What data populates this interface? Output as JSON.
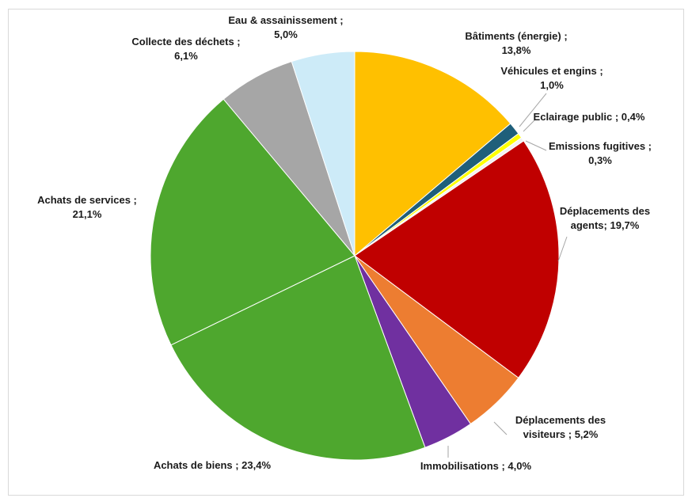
{
  "chart_data": {
    "type": "pie",
    "title": "",
    "slices": [
      {
        "name": "Bâtiments (énergie)",
        "value": 13.8,
        "label_lines": [
          "Bâtiments (énergie) ;",
          "13,8%"
        ],
        "color": "#FFC000"
      },
      {
        "name": "Véhicules et engins",
        "value": 1.0,
        "label_lines": [
          "Véhicules et engins ;",
          "1,0%"
        ],
        "color": "#1F5F7A"
      },
      {
        "name": "Eclairage public",
        "value": 0.4,
        "label_lines": [
          "Eclairage public ; 0,4%"
        ],
        "color": "#FFFF00"
      },
      {
        "name": "Emissions fugitives",
        "value": 0.3,
        "label_lines": [
          "Emissions fugitives ;",
          "0,3%"
        ],
        "color": "#F2F2F2"
      },
      {
        "name": "Déplacements des agents",
        "value": 19.7,
        "label_lines": [
          "Déplacements des",
          "agents; 19,7%"
        ],
        "color": "#C00000"
      },
      {
        "name": "Déplacements des visiteurs",
        "value": 5.2,
        "label_lines": [
          "Déplacements des",
          "visiteurs ; 5,2%"
        ],
        "color": "#ED7D31"
      },
      {
        "name": "Immobilisations",
        "value": 4.0,
        "label_lines": [
          "Immobilisations ; 4,0%"
        ],
        "color": "#7030A0"
      },
      {
        "name": "Achats de biens",
        "value": 23.4,
        "label_lines": [
          "Achats de biens ; 23,4%"
        ],
        "color": "#4EA72E"
      },
      {
        "name": "Achats de services",
        "value": 21.1,
        "label_lines": [
          "Achats de services ;",
          "21,1%"
        ],
        "color": "#4EA72E"
      },
      {
        "name": "Collecte des déchets",
        "value": 6.1,
        "label_lines": [
          "Collecte des déchets ;",
          "6,1%"
        ],
        "color": "#A6A6A6"
      },
      {
        "name": "Eau & assainissement",
        "value": 5.0,
        "label_lines": [
          "Eau & assainissement ;",
          "5,0%"
        ],
        "color": "#CDEBF8"
      }
    ],
    "start_angle": "12 o'clock",
    "direction": "clockwise",
    "legend": "none",
    "data_labels": "outside with leader lines"
  }
}
